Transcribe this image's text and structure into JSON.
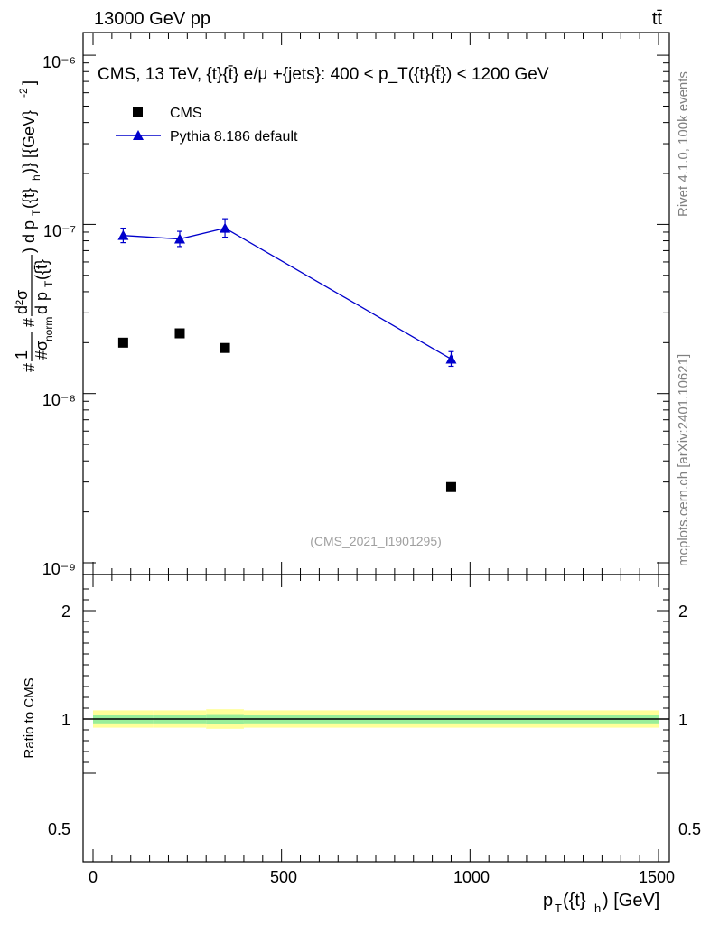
{
  "header": {
    "energy_label": "13000 GeV pp",
    "process_label": "tt̄"
  },
  "side_text": {
    "rivet": "Rivet 4.1.0,  100k events",
    "source": "mcplots.cern.ch [arXiv:2401.10621]"
  },
  "watermark": "(CMS_2021_I1901295)",
  "chart_data": [
    {
      "type": "scatter",
      "panel": "main",
      "title": "CMS, 13 TeV, {t}{t̄} e/μ +{jets}: 400 <  p_T({t}{t̄}) < 1200 GeV",
      "ylabel": "#1/σ_norm #d²σ/dp_T({t̄}) d p_T({t}_h)} [{GeV}^-2]",
      "ylabel_segments": {
        "frac1_num": "#",
        "frac1_one": "1",
        "frac1_den": "#σ",
        "frac1_den_sub": "norm",
        "frac2_num": "d²σ",
        "frac2_den": "d p",
        "frac2_den_sub": "T",
        "frac2_den_tail": "({t̄}",
        "rest": ") d p",
        "rest_sub": "T",
        "rest_tail1": "({t}",
        "rest_sub2": "h",
        "rest_tail2": ")} [{GeV}",
        "rest_sup": "-2",
        "rest_end": "]"
      },
      "yscale": "log",
      "ylim": [
        1e-09,
        1.5e-06
      ],
      "xlim": [
        -60,
        1510
      ],
      "y_tick_labels": [
        "10⁻⁹",
        "10⁻⁸",
        "10⁻⁷",
        "10⁻⁶"
      ],
      "legend": [
        {
          "label": "CMS",
          "marker": "square",
          "color": "#000000"
        },
        {
          "label": "Pythia 8.186 default",
          "marker": "triangle",
          "color": "#0000cc"
        }
      ],
      "legend_placement": "top-left",
      "series": [
        {
          "name": "CMS",
          "x": [
            80,
            230,
            350,
            950
          ],
          "y": [
            2e-08,
            2.27e-08,
            1.86e-08,
            2.8e-09
          ],
          "color": "#000000"
        },
        {
          "name": "Pythia 8.186 default",
          "x": [
            80,
            230,
            350,
            950
          ],
          "y": [
            8.6e-08,
            8.2e-08,
            9.5e-08,
            1.6e-08
          ],
          "yerr_lo": [
            8e-09,
            8e-09,
            1.1e-08,
            1.5e-09
          ],
          "yerr_hi": [
            9e-09,
            9e-09,
            1.3e-08,
            1.7e-09
          ],
          "color": "#0000cc"
        }
      ]
    },
    {
      "type": "line",
      "panel": "ratio",
      "ylabel": "Ratio to CMS",
      "xlabel": "p_T({t}_h) [GeV]",
      "xlabel_parts": {
        "p": "p",
        "sub": "T",
        "mid": "({t}",
        "sub2": "h",
        "end": ") [GeV]"
      },
      "ylim": [
        0.4,
        2.3
      ],
      "yticks": [
        0.5,
        1,
        2
      ],
      "y_tick_labels": [
        "0.5",
        "1",
        "2"
      ],
      "xlim": [
        -60,
        1510
      ],
      "xticks": [
        0,
        500,
        1000,
        1500
      ],
      "x_tick_labels": [
        "0",
        "500",
        "1000",
        "1500"
      ],
      "reference_line": 1.0,
      "bands": [
        {
          "name": "outer",
          "color": "#ffff99",
          "bins": [
            [
              0,
              160
            ],
            [
              160,
              300
            ],
            [
              300,
              400
            ],
            [
              400,
              1500
            ]
          ],
          "lo": [
            0.92,
            0.92,
            0.91,
            0.92
          ],
          "hi": [
            1.08,
            1.08,
            1.09,
            1.08
          ]
        },
        {
          "name": "inner",
          "color": "#99ee99",
          "bins": [
            [
              0,
              160
            ],
            [
              160,
              300
            ],
            [
              300,
              400
            ],
            [
              400,
              1500
            ]
          ],
          "lo": [
            0.96,
            0.96,
            0.955,
            0.96
          ],
          "hi": [
            1.04,
            1.04,
            1.045,
            1.04
          ]
        }
      ]
    }
  ]
}
